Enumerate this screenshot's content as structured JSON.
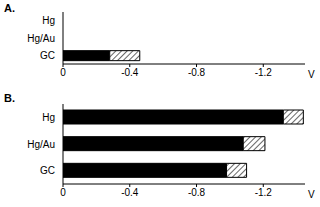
{
  "chart_data": [
    {
      "type": "bar",
      "title": "A.",
      "orientation": "horizontal",
      "stacked": true,
      "categories": [
        "Hg",
        "Hg/Au",
        "GC"
      ],
      "series": [
        {
          "color": "#000000",
          "values": [
            null,
            null,
            -0.28
          ]
        },
        {
          "color": "#000000",
          "values": [
            null,
            null,
            -0.18
          ]
        }
      ],
      "x_label": "V",
      "xlim": [
        0,
        -1.45
      ],
      "xticks": [
        0,
        -0.4,
        -0.8,
        -1.2
      ]
    },
    {
      "type": "bar",
      "title": "B.",
      "orientation": "horizontal",
      "stacked": true,
      "categories": [
        "Hg",
        "Hg/Au",
        "GC"
      ],
      "series": [
        {
          "color": "#000000",
          "values": [
            -1.32,
            -1.08,
            -0.98
          ]
        },
        {
          "color": "#000000",
          "values": [
            -0.12,
            -0.13,
            -0.12
          ]
        }
      ],
      "x_label": "V",
      "xlim": [
        0,
        -1.45
      ],
      "xticks": [
        0,
        -0.4,
        -0.8,
        -1.2
      ]
    }
  ]
}
